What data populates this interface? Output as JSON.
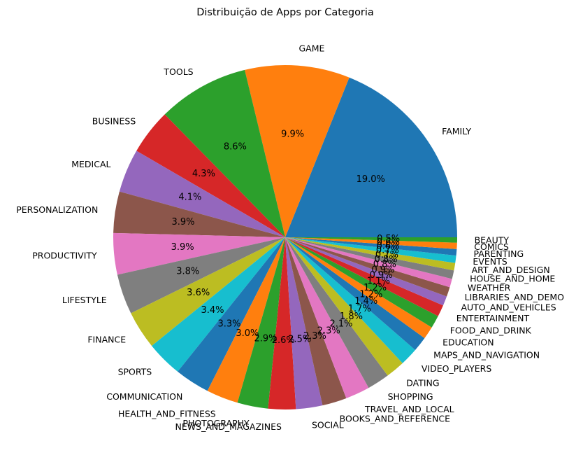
{
  "chart_data": {
    "type": "pie",
    "title": "Distribuição de Apps por Categoria",
    "start_angle_deg": 0,
    "direction": "counterclockwise",
    "slices": [
      {
        "label": "FAMILY",
        "pct": 19.0,
        "pct_label": "19.0%",
        "color": "#1f77b4"
      },
      {
        "label": "GAME",
        "pct": 9.9,
        "pct_label": "9.9%",
        "color": "#ff7f0e"
      },
      {
        "label": "TOOLS",
        "pct": 8.6,
        "pct_label": "8.6%",
        "color": "#2ca02c"
      },
      {
        "label": "BUSINESS",
        "pct": 4.3,
        "pct_label": "4.3%",
        "color": "#d62728"
      },
      {
        "label": "MEDICAL",
        "pct": 4.1,
        "pct_label": "4.1%",
        "color": "#9467bd"
      },
      {
        "label": "PERSONALIZATION",
        "pct": 3.9,
        "pct_label": "3.9%",
        "color": "#8c564b"
      },
      {
        "label": "PRODUCTIVITY",
        "pct": 3.9,
        "pct_label": "3.9%",
        "color": "#e377c2"
      },
      {
        "label": "LIFESTYLE",
        "pct": 3.8,
        "pct_label": "3.8%",
        "color": "#7f7f7f"
      },
      {
        "label": "FINANCE",
        "pct": 3.6,
        "pct_label": "3.6%",
        "color": "#bcbd22"
      },
      {
        "label": "SPORTS",
        "pct": 3.4,
        "pct_label": "3.4%",
        "color": "#17becf"
      },
      {
        "label": "COMMUNICATION",
        "pct": 3.3,
        "pct_label": "3.3%",
        "color": "#1f77b4"
      },
      {
        "label": "HEALTH_AND_FITNESS",
        "pct": 3.0,
        "pct_label": "3.0%",
        "color": "#ff7f0e"
      },
      {
        "label": "PHOTOGRAPHY",
        "pct": 2.9,
        "pct_label": "2.9%",
        "color": "#2ca02c"
      },
      {
        "label": "NEWS_AND_MAGAZINES",
        "pct": 2.6,
        "pct_label": "2.6%",
        "color": "#d62728"
      },
      {
        "label": "SOCIAL",
        "pct": 2.5,
        "pct_label": "2.5%",
        "color": "#9467bd"
      },
      {
        "label": "BOOKS_AND_REFERENCE",
        "pct": 2.3,
        "pct_label": "2.3%",
        "color": "#8c564b"
      },
      {
        "label": "TRAVEL_AND_LOCAL",
        "pct": 2.3,
        "pct_label": "2.3%",
        "color": "#e377c2"
      },
      {
        "label": "SHOPPING",
        "pct": 2.1,
        "pct_label": "2.1%",
        "color": "#7f7f7f"
      },
      {
        "label": "DATING",
        "pct": 1.8,
        "pct_label": "1.8%",
        "color": "#bcbd22"
      },
      {
        "label": "VIDEO_PLAYERS",
        "pct": 1.7,
        "pct_label": "1.7%",
        "color": "#17becf"
      },
      {
        "label": "MAPS_AND_NAVIGATION",
        "pct": 1.4,
        "pct_label": "1.4%",
        "color": "#1f77b4"
      },
      {
        "label": "EDUCATION",
        "pct": 1.2,
        "pct_label": "1.2%",
        "color": "#ff7f0e"
      },
      {
        "label": "FOOD_AND_DRINK",
        "pct": 1.2,
        "pct_label": "1.2%",
        "color": "#2ca02c"
      },
      {
        "label": "ENTERTAINMENT",
        "pct": 1.1,
        "pct_label": "1.1%",
        "color": "#d62728"
      },
      {
        "label": "AUTO_AND_VEHICLES",
        "pct": 0.9,
        "pct_label": "0.9%",
        "color": "#9467bd"
      },
      {
        "label": "LIBRARIES_AND_DEMO",
        "pct": 0.9,
        "pct_label": "0.9%",
        "color": "#8c564b"
      },
      {
        "label": "WEATHER",
        "pct": 0.8,
        "pct_label": "0.8%",
        "color": "#e377c2"
      },
      {
        "label": "HOUSE_AND_HOME",
        "pct": 0.8,
        "pct_label": "0.8%",
        "color": "#7f7f7f"
      },
      {
        "label": "ART_AND_DESIGN",
        "pct": 0.7,
        "pct_label": "0.7%",
        "color": "#bcbd22"
      },
      {
        "label": "EVENTS",
        "pct": 0.7,
        "pct_label": "0.7%",
        "color": "#17becf"
      },
      {
        "label": "PARENTING",
        "pct": 0.6,
        "pct_label": "0.6%",
        "color": "#1f77b4"
      },
      {
        "label": "COMICS",
        "pct": 0.6,
        "pct_label": "0.6%",
        "color": "#ff7f0e"
      },
      {
        "label": "BEAUTY",
        "pct": 0.5,
        "pct_label": "0.5%",
        "color": "#2ca02c"
      }
    ]
  }
}
